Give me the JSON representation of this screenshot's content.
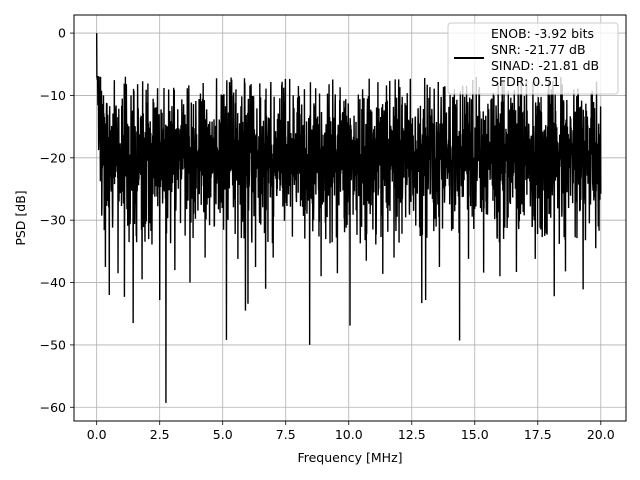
{
  "chart_data": {
    "type": "line",
    "title": "",
    "xlabel": "Frequency [MHz]",
    "ylabel": "PSD [dB]",
    "xlim": [
      -0.9,
      21.0
    ],
    "ylim": [
      -62.2,
      2.9
    ],
    "xticks": [
      0.0,
      2.5,
      5.0,
      7.5,
      10.0,
      12.5,
      15.0,
      17.5,
      20.0
    ],
    "xtick_labels": [
      "0.0",
      "2.5",
      "5.0",
      "7.5",
      "10.0",
      "12.5",
      "15.0",
      "17.5",
      "20.0"
    ],
    "yticks": [
      0,
      -10,
      -20,
      -30,
      -40,
      -50,
      -60
    ],
    "ytick_labels": [
      "0",
      "−10",
      "−20",
      "−30",
      "−40",
      "−50",
      "−60"
    ],
    "grid": true,
    "legend_position": "top-right",
    "line_color": "#000000",
    "series": [
      {
        "name": "",
        "legend_lines": [
          "ENOB: -3.92 bits",
          "SNR: -21.77 dB",
          "SINAD: -21.81 dB",
          "SFDR: 0.51"
        ],
        "x_range": [
          0.0,
          20.0
        ],
        "start_value": 0.0,
        "typical_band": [
          -27,
          -12
        ],
        "max_peak": -7,
        "dips": [
          {
            "x": 0.35,
            "y": -37.5
          },
          {
            "x": 0.5,
            "y": -42
          },
          {
            "x": 0.85,
            "y": -38.5
          },
          {
            "x": 1.1,
            "y": -42.3
          },
          {
            "x": 1.45,
            "y": -46.5
          },
          {
            "x": 1.8,
            "y": -39.5
          },
          {
            "x": 2.5,
            "y": -42.8
          },
          {
            "x": 2.75,
            "y": -59.3
          },
          {
            "x": 3.1,
            "y": -38
          },
          {
            "x": 3.7,
            "y": -40
          },
          {
            "x": 4.3,
            "y": -36
          },
          {
            "x": 5.15,
            "y": -49.2
          },
          {
            "x": 5.6,
            "y": -36.2
          },
          {
            "x": 5.9,
            "y": -44.5
          },
          {
            "x": 6.0,
            "y": -43.4
          },
          {
            "x": 6.3,
            "y": -37.5
          },
          {
            "x": 6.7,
            "y": -41
          },
          {
            "x": 7.0,
            "y": -36
          },
          {
            "x": 8.45,
            "y": -50.0
          },
          {
            "x": 8.9,
            "y": -39
          },
          {
            "x": 9.55,
            "y": -38.5
          },
          {
            "x": 10.05,
            "y": -46.9
          },
          {
            "x": 10.7,
            "y": -36.5
          },
          {
            "x": 11.35,
            "y": -38.6
          },
          {
            "x": 11.8,
            "y": -36
          },
          {
            "x": 12.9,
            "y": -43.3
          },
          {
            "x": 13.05,
            "y": -42.8
          },
          {
            "x": 13.6,
            "y": -37.5
          },
          {
            "x": 14.4,
            "y": -49.3
          },
          {
            "x": 14.75,
            "y": -36.2
          },
          {
            "x": 15.35,
            "y": -38.4
          },
          {
            "x": 16.0,
            "y": -39
          },
          {
            "x": 16.65,
            "y": -38.3
          },
          {
            "x": 17.4,
            "y": -36.2
          },
          {
            "x": 18.15,
            "y": -42.2
          },
          {
            "x": 18.6,
            "y": -38.2
          },
          {
            "x": 19.3,
            "y": -41.1
          },
          {
            "x": 19.8,
            "y": -34.5
          }
        ]
      }
    ]
  }
}
